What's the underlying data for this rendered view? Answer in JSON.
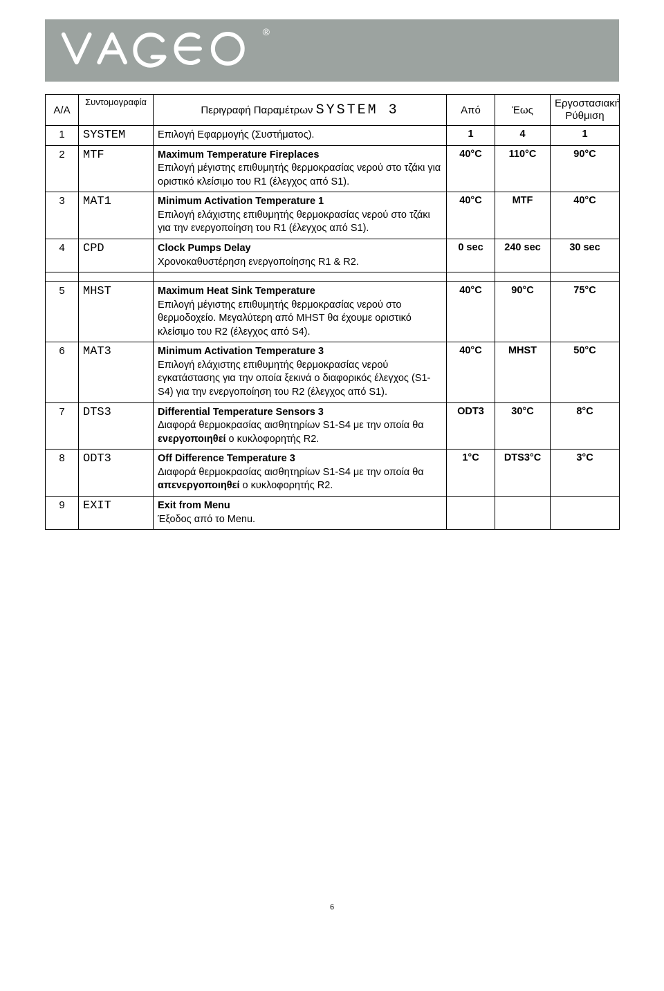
{
  "logo": {
    "text": "VAGEO",
    "background": "#9ca3a0",
    "text_color": "#ffffff"
  },
  "table": {
    "headers": {
      "aa": "A/A",
      "abbr": "Συντομογραφία",
      "desc_prefix": "Περιγραφή Παραμέτρων",
      "desc_system": "SYSTEM 3",
      "from": "Από",
      "to": "Έως",
      "factory_l1": "Εργοστασιακή",
      "factory_l2": "Ρύθμιση"
    },
    "rows": [
      {
        "n": "1",
        "abbr": "SYSTEM",
        "title": "",
        "body": "Επιλογή Εφαρμογής (Συστήματος).",
        "from": "1",
        "to": "4",
        "def": "1"
      },
      {
        "n": "2",
        "abbr": "MTF",
        "title": "Maximum Temperature Fireplaces",
        "body": "Επιλογή μέγιστης επιθυμητής θερμοκρασίας νερού στο τζάκι για οριστικό κλείσιμο του R1 (έλεγχος από S1).",
        "from": "40°C",
        "to": "110°C",
        "def": "90°C"
      },
      {
        "n": "3",
        "abbr": "MAT1",
        "title": "Minimum Activation Temperature 1",
        "body": "Επιλογή ελάχιστης επιθυμητής θερμοκρασίας νερού στο τζάκι για την ενεργοποίηση του R1 (έλεγχος από S1).",
        "from": "40°C",
        "to": "MTF",
        "def": "40°C"
      },
      {
        "n": "4",
        "abbr": "CPD",
        "title": "Clock Pumps Delay",
        "body": "Χρονοκαθυστέρηση ενεργοποίησης R1 & R2.",
        "from": "0 sec",
        "to": "240 sec",
        "def": "30 sec"
      },
      {
        "n": "5",
        "abbr": "MHST",
        "title": "Maximum Heat Sink Temperature",
        "body": "Επιλογή μέγιστης επιθυμητής θερμοκρασίας νερού στο θερμοδοχείο. Μεγαλύτερη από MHST θα έχουμε οριστικό κλείσιμο του R2 (έλεγχος από S4).",
        "from": "40°C",
        "to": "90°C",
        "def": "75°C"
      },
      {
        "n": "6",
        "abbr": "MAT3",
        "title": "Minimum Activation Temperature 3",
        "body": "Επιλογή ελάχιστης επιθυμητής θερμοκρασίας νερού εγκατάστασης για την οποία ξεκινά ο διαφορικός έλεγχος (S1-S4)  για την ενεργοποίηση του R2 (έλεγχος από S1).",
        "from": "40°C",
        "to": "MHST",
        "def": "50°C"
      },
      {
        "n": "7",
        "abbr": "DTS3",
        "title": "Differential Temperature Sensors 3",
        "body": "Διαφορά θερμοκρασίας αισθητηρίων S1-S4 με την οποία θα <b>ενεργοποιηθεί</b> ο κυκλοφορητής R2.",
        "from": "ODT3",
        "to": "30°C",
        "def": "8°C"
      },
      {
        "n": "8",
        "abbr": "ODT3",
        "title": "Off Difference Temperature 3",
        "body": "Διαφορά θερμοκρασίας αισθητηρίων S1-S4 με την οποία θα <b>απενεργοποιηθεί</b> ο κυκλοφορητής R2.",
        "from": "1°C",
        "to": "DTS3°C",
        "def": "3°C"
      },
      {
        "n": "9",
        "abbr": "EXIT",
        "title": "Exit from Menu",
        "body": "Έξοδος από το Menu.",
        "from": "",
        "to": "",
        "def": ""
      }
    ]
  },
  "page_number": "6"
}
